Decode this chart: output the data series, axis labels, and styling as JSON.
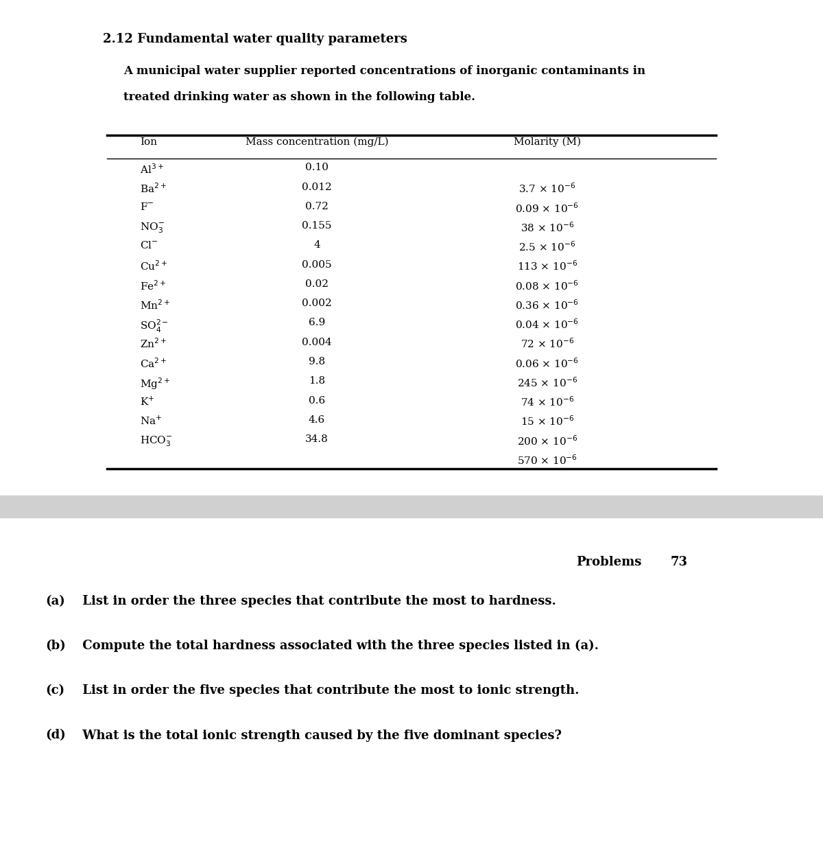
{
  "title_number": "2.12",
  "title_text": "Fundamental water quality parameters",
  "subtitle_line1": "A municipal water supplier reported concentrations of inorganic contaminants in",
  "subtitle_line2": "treated drinking water as shown in the following table.",
  "col_ion": "Ion",
  "col_mass": "Mass concentration (mg/L)",
  "col_mol": "Molarity (M)",
  "rows": [
    [
      "Al$^{3+}$",
      "0.10",
      ""
    ],
    [
      "Ba$^{2+}$",
      "0.012",
      "3.7 × 10$^{-6}$"
    ],
    [
      "F$^{-}$",
      "0.72",
      "0.09 × 10$^{-6}$"
    ],
    [
      "NO$_3^{-}$",
      "0.155",
      "38 × 10$^{-6}$"
    ],
    [
      "Cl$^{-}$",
      "4",
      "2.5 × 10$^{-6}$"
    ],
    [
      "Cu$^{2+}$",
      "0.005",
      "113 × 10$^{-6}$"
    ],
    [
      "Fe$^{2+}$",
      "0.02",
      "0.08 × 10$^{-6}$"
    ],
    [
      "Mn$^{2+}$",
      "0.002",
      "0.36 × 10$^{-6}$"
    ],
    [
      "SO$_4^{2-}$",
      "6.9",
      "0.04 × 10$^{-6}$"
    ],
    [
      "Zn$^{2+}$",
      "0.004",
      "72 × 10$^{-6}$"
    ],
    [
      "Ca$^{2+}$",
      "9.8",
      "0.06 × 10$^{-6}$"
    ],
    [
      "Mg$^{2+}$",
      "1.8",
      "245 × 10$^{-6}$"
    ],
    [
      "K$^{+}$",
      "0.6",
      "74 × 10$^{-6}$"
    ],
    [
      "Na$^{+}$",
      "4.6",
      "15 × 10$^{-6}$"
    ],
    [
      "HCO$_3^{-}$",
      "34.8",
      "200 × 10$^{-6}$"
    ],
    [
      "",
      "",
      "570 × 10$^{-6}$"
    ]
  ],
  "problems_label": "Problems",
  "problems_number": "73",
  "questions": [
    [
      "(a)",
      " List in order the three species that contribute the most to hardness."
    ],
    [
      "(b)",
      " Compute the total hardness associated with the three species listed in (a)."
    ],
    [
      "(c)",
      " List in order the five species that contribute the most to ionic strength."
    ],
    [
      "(d)",
      " What is the total ionic strength caused by the five dominant species?"
    ]
  ],
  "bg_color": "#ffffff",
  "text_color": "#000000",
  "gray_band_color": "#d0d0d0",
  "title_fontsize": 13,
  "subtitle_fontsize": 12,
  "table_fontsize": 11,
  "question_fontsize": 13
}
